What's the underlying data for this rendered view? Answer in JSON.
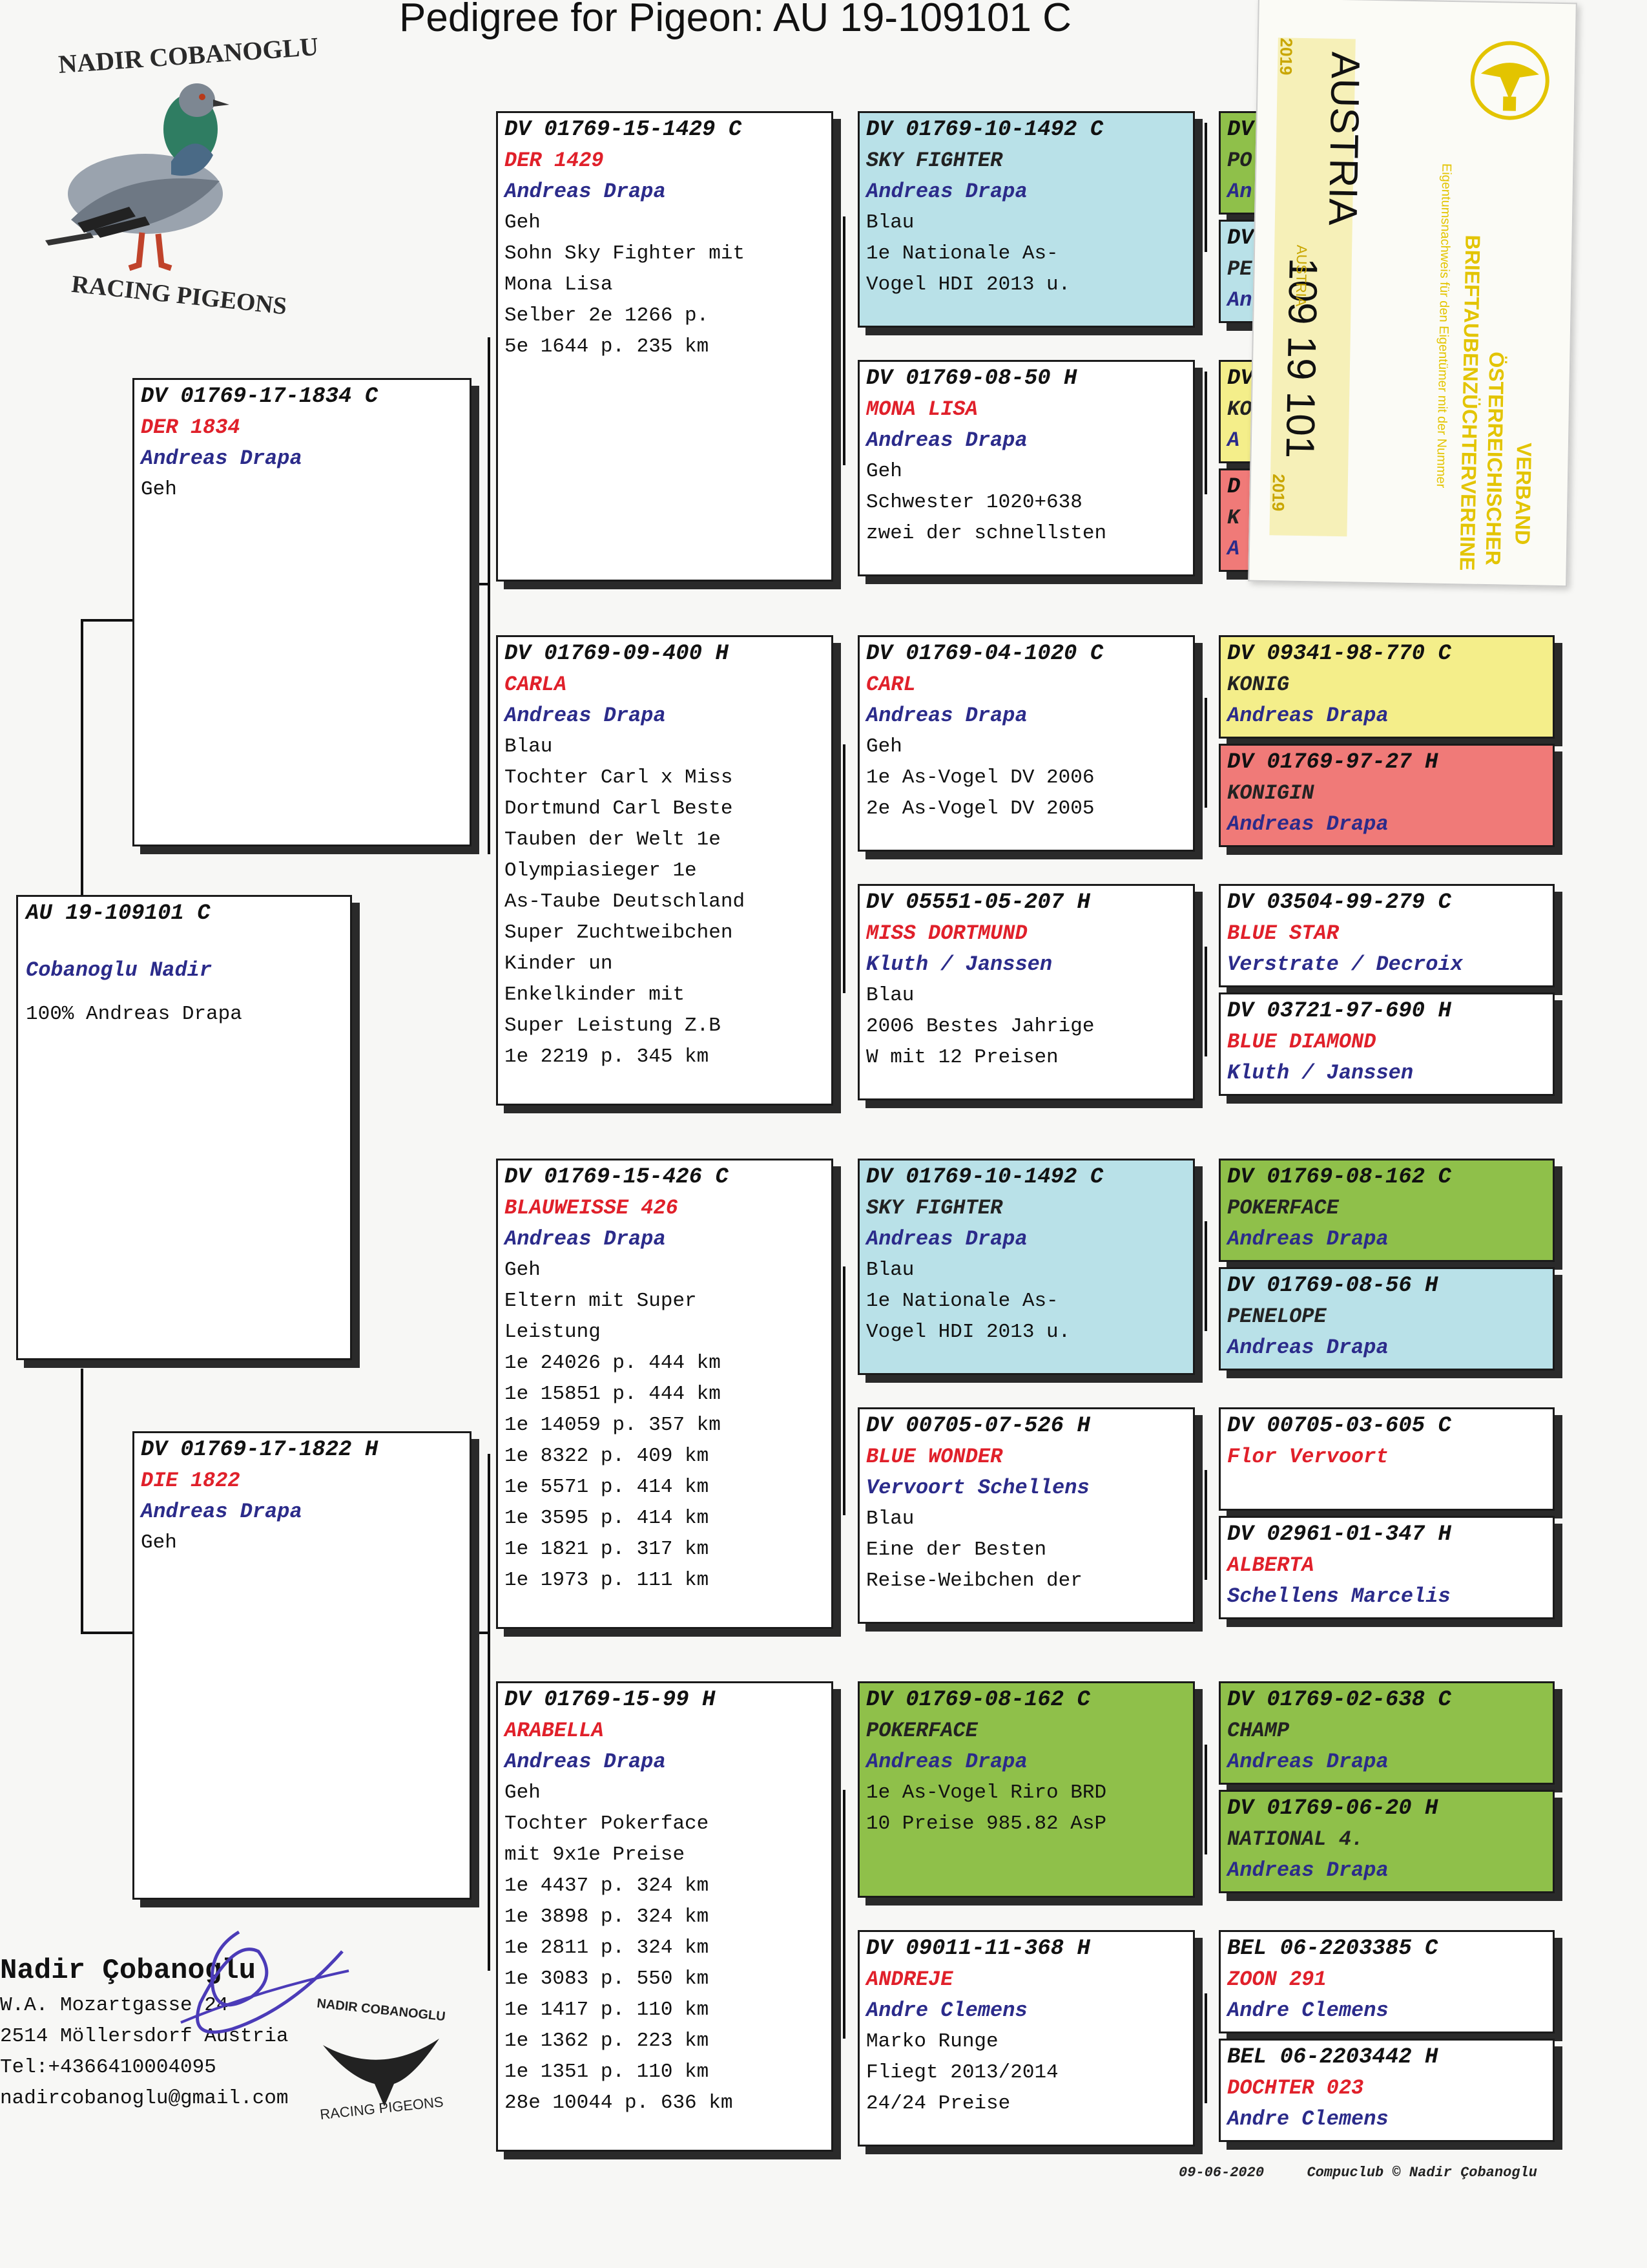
{
  "title": "Pedigree for Pigeon: AU  19-109101 C",
  "logo": {
    "top_text": "NADIR COBANOGLU",
    "bottom_text": "RACING PIGEONS"
  },
  "subject": {
    "ring": "AU  19-109101 C",
    "owner": "Cobanoglu Nadir",
    "note": "100% Andreas Drapa"
  },
  "sire": {
    "ring": "DV  01769-17-1834 C",
    "name": "DER 1834",
    "breeder": "Andreas Drapa",
    "color": "Geh"
  },
  "dam": {
    "ring": "DV  01769-17-1822 H",
    "name": "DIE 1822",
    "breeder": "Andreas Drapa",
    "color": "Geh"
  },
  "gen2": {
    "ss": {
      "ring": "DV  01769-15-1429 C",
      "name": "DER 1429",
      "breeder": "Andreas Drapa",
      "color": "Geh",
      "lines": [
        "Sohn Sky Fighter mit",
        "Mona Lisa",
        "Selber 2e 1266 p.",
        "5e 1644 p. 235  km"
      ]
    },
    "sd": {
      "ring": "DV  01769-09-400 H",
      "name": "CARLA",
      "breeder": "Andreas Drapa",
      "color": "Blau",
      "lines": [
        "Tochter Carl x Miss",
        "Dortmund Carl Beste",
        "Tauben der Welt 1e",
        "Olympiasieger 1e",
        "As-Taube Deutschland",
        "Super Zuchtweibchen",
        "Kinder un",
        "Enkelkinder mit",
        "Super Leistung Z.B",
        "1e 2219 p. 345  km"
      ]
    },
    "ds": {
      "ring": "DV  01769-15-426 C",
      "name": "BLAUWEISSE 426",
      "breeder": "Andreas Drapa",
      "color": "Geh",
      "lines": [
        "Eltern mit Super",
        "Leistung",
        "1e 24026 p. 444  km",
        "1e 15851 p. 444  km",
        "1e 14059 p. 357  km",
        "1e 8322 p. 409  km",
        "1e 5571 p. 414  km",
        "1e 3595 p. 414  km",
        "1e 1821 p. 317  km",
        "1e 1973 p. 111  km"
      ]
    },
    "dd": {
      "ring": "DV  01769-15-99 H",
      "name": "ARABELLA",
      "breeder": "Andreas Drapa",
      "color": "Geh",
      "lines": [
        "Tochter Pokerface",
        "mit 9x1e Preise",
        "1e 4437 p. 324  km",
        "1e 3898 p. 324  km",
        "1e 2811 p. 324  km",
        "1e 3083 p. 550  km",
        "1e 1417 p. 110  km",
        "1e 1362 p. 223  km",
        "1e 1351 p. 110  km",
        "28e 10044 p. 636  km"
      ]
    }
  },
  "gen3": [
    {
      "ring": "DV  01769-10-1492 C",
      "name": "SKY FIGHTER",
      "breeder": "Andreas Drapa",
      "lines": [
        "Blau",
        "1e Nationale As-",
        "Vogel HDI 2013 u."
      ]
    },
    {
      "ring": "DV  01769-08-50 H",
      "name": "MONA LISA",
      "breeder": "Andreas Drapa",
      "lines": [
        "Geh",
        "Schwester 1020+638",
        "zwei der schnellsten"
      ]
    },
    {
      "ring": "DV  01769-04-1020 C",
      "name": "CARL",
      "breeder": "Andreas Drapa",
      "lines": [
        "Geh",
        "1e As-Vogel DV 2006",
        "2e As-Vogel DV 2005"
      ]
    },
    {
      "ring": "DV  05551-05-207 H",
      "name": "MISS DORTMUND",
      "breeder": "Kluth / Janssen",
      "lines": [
        "Blau",
        "2006 Bestes Jahrige",
        "W mit 12 Preisen"
      ]
    },
    {
      "ring": "DV  01769-10-1492 C",
      "name": "SKY FIGHTER",
      "breeder": "Andreas Drapa",
      "lines": [
        "Blau",
        "1e Nationale As-",
        "Vogel HDI 2013 u."
      ]
    },
    {
      "ring": "DV  00705-07-526 H",
      "name": "BLUE WONDER",
      "breeder": "Vervoort Schellens",
      "lines": [
        "Blau",
        "Eine der Besten",
        "Reise-Weibchen der"
      ]
    },
    {
      "ring": "DV  01769-08-162 C",
      "name": "POKERFACE",
      "breeder": "Andreas Drapa",
      "lines": [
        "",
        "1e As-Vogel Riro BRD",
        "10 Preise 985.82 AsP"
      ]
    },
    {
      "ring": "DV  09011-11-368 H",
      "name": "ANDREJE",
      "breeder": "Andre Clemens",
      "lines": [
        "Marko Runge",
        "Fliegt 2013/2014",
        "24/24 Preise"
      ]
    }
  ],
  "gen4": [
    {
      "ring": "DV",
      "name": "PO",
      "breeder": "An"
    },
    {
      "ring": "DV",
      "name": "PE",
      "breeder": "An"
    },
    {
      "ring": "DV",
      "name": "KO",
      "breeder": "A"
    },
    {
      "ring": "D",
      "name": "K",
      "breeder": "A"
    },
    {
      "ring": "DV  09341-98-770 C",
      "name": "KONIG",
      "breeder": "Andreas Drapa"
    },
    {
      "ring": "DV  01769-97-27 H",
      "name": "KONIGIN",
      "breeder": "Andreas Drapa"
    },
    {
      "ring": "DV  03504-99-279 C",
      "name": "BLUE STAR",
      "breeder": "Verstrate / Decroix"
    },
    {
      "ring": "DV  03721-97-690 H",
      "name": "BLUE DIAMOND",
      "breeder": "Kluth / Janssen"
    },
    {
      "ring": "DV  01769-08-162 C",
      "name": "POKERFACE",
      "breeder": "Andreas Drapa"
    },
    {
      "ring": "DV  01769-08-56 H",
      "name": "PENELOPE",
      "breeder": "Andreas Drapa"
    },
    {
      "ring": "DV  00705-03-605 C",
      "name": "Flor Vervoort",
      "breeder": ""
    },
    {
      "ring": "DV  02961-01-347 H",
      "name": "ALBERTA",
      "breeder": "Schellens Marcelis"
    },
    {
      "ring": "DV  01769-02-638 C",
      "name": "CHAMP",
      "breeder": "Andreas Drapa"
    },
    {
      "ring": "DV  01769-06-20 H",
      "name": "NATIONAL 4.",
      "breeder": "Andreas Drapa"
    },
    {
      "ring": "BEL  06-2203385 C",
      "name": "ZOON 291",
      "breeder": "Andre Clemens"
    },
    {
      "ring": "BEL  06-2203442 H",
      "name": "DOCHTER 023",
      "breeder": "Andre Clemens"
    }
  ],
  "sticker": {
    "year_top": "2019",
    "country": "AUSTRIA",
    "numbers": "109 19  101",
    "small_country": "AUSTRIA",
    "year_bottom": "2019",
    "verband1": "VERBAND",
    "verband2": "ÖSTERREICHISCHER",
    "verband3": "BRIEFTAUBENZÜCHTERVEREINE",
    "verband4": "Eigentumsnachweis für den Eigentümer mit der Nummer"
  },
  "footer": {
    "owner": "Nadir Çobanoglu",
    "address1": "W.A. Mozartgasse 24",
    "address2": "2514  Möllersdorf Austria",
    "phone": "Tel:+4366410004095",
    "email": "nadircobanoglu@gmail.com",
    "stamp_top": "NADIR COBANOGLU",
    "stamp_bottom": "RACING PIGEONS",
    "date": "09-06-2020",
    "credit": "Compuclub © Nadir Çobanoglu"
  },
  "colors": {
    "red_name": "#e0202a",
    "breeder_blue": "#2b2b8a",
    "blue_box": "#b9e1e8",
    "green_box": "#8fc04a",
    "yellow_box": "#f4ee8a",
    "red_box": "#f07a78"
  }
}
